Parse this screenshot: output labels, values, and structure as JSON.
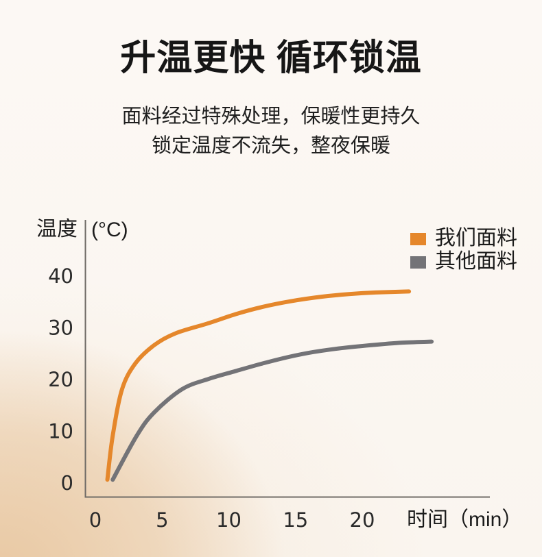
{
  "header": {
    "title": "升温更快 循环锁温",
    "subtitle_line1": "面料经过特殊处理，保暖性更持久",
    "subtitle_line2": "锁定温度不流失，整夜保暖"
  },
  "chart_data": {
    "type": "line",
    "ylabel": "温度",
    "ylabel_unit": "(°C)",
    "xlabel": "时间（min）",
    "x_ticks": [
      0,
      5,
      10,
      15,
      20
    ],
    "y_ticks": [
      0,
      10,
      20,
      30,
      40
    ],
    "xlim": [
      0,
      30
    ],
    "ylim": [
      0,
      45
    ],
    "grid": false,
    "legend_position": "top-right",
    "series": [
      {
        "name": "我们面料",
        "color": "#E5872B",
        "points": [
          [
            0.9,
            0.5
          ],
          [
            1.3,
            9
          ],
          [
            2,
            18
          ],
          [
            3,
            23
          ],
          [
            4.4,
            26.5
          ],
          [
            6,
            28.8
          ],
          [
            8.4,
            30.7
          ],
          [
            10.5,
            32.5
          ],
          [
            12.5,
            33.9
          ],
          [
            14.6,
            35
          ],
          [
            17,
            35.9
          ],
          [
            19,
            36.4
          ],
          [
            21,
            36.7
          ],
          [
            23.5,
            36.9
          ]
        ]
      },
      {
        "name": "其他面料",
        "color": "#737377",
        "points": [
          [
            1.3,
            0.5
          ],
          [
            3.1,
            9
          ],
          [
            4.4,
            13.5
          ],
          [
            6.5,
            18
          ],
          [
            8.5,
            20
          ],
          [
            10.5,
            21.5
          ],
          [
            13,
            23.3
          ],
          [
            15.5,
            24.8
          ],
          [
            18,
            25.8
          ],
          [
            20.6,
            26.5
          ],
          [
            23,
            27
          ],
          [
            25.2,
            27.2
          ]
        ]
      }
    ]
  },
  "colors": {
    "accent_orange": "#E5872B",
    "neutral_gray": "#737377",
    "background_glow": "#EAC9A6",
    "text_primary": "#1A1A1A"
  }
}
